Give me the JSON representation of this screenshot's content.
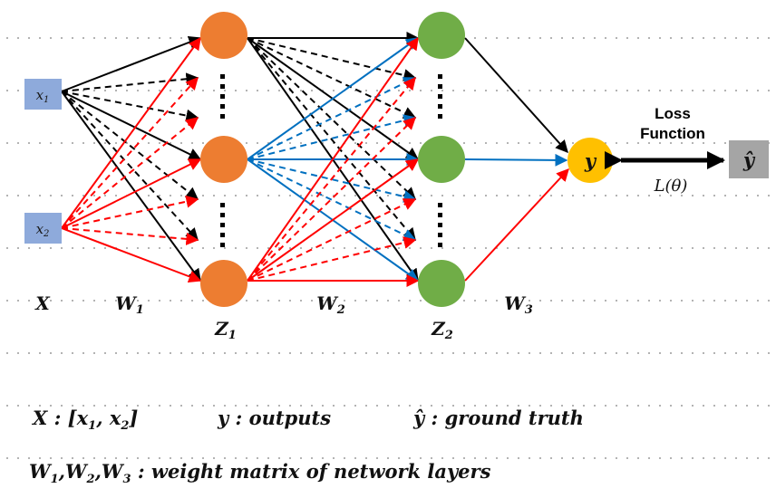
{
  "inputs": [
    {
      "base": "x",
      "sub": "1"
    },
    {
      "base": "x",
      "sub": "2"
    }
  ],
  "output_label": "y",
  "ground_truth_label": "ŷ",
  "loss": {
    "line1": "Loss",
    "line2": "Function",
    "formula": "L(θ)"
  },
  "labels": {
    "X": "X",
    "W1": {
      "base": "W",
      "sub": "1"
    },
    "Z1": {
      "base": "Z",
      "sub": "1"
    },
    "W2": {
      "base": "W",
      "sub": "2"
    },
    "Z2": {
      "base": "Z",
      "sub": "2"
    },
    "W3": {
      "base": "W",
      "sub": "3"
    }
  },
  "legend": {
    "line1": {
      "x_def": {
        "lhs": "X",
        "sep": " :  [",
        "a": "x",
        "a_sub": "1",
        "comma": ", ",
        "b": "x",
        "b_sub": "2",
        "end": "]"
      },
      "y_def": {
        "lhs": "y",
        "text": " :  outputs"
      },
      "yhat_def": {
        "lhs": "ŷ",
        "text": " :  ground truth"
      }
    },
    "line2": {
      "w1": "W",
      "w1_sub": "1",
      "w2": "W",
      "w2_sub": "2",
      "w3": "W",
      "w3_sub": "3",
      "comma": ",",
      "text": "  :  weight matrix of network layers"
    }
  },
  "colors": {
    "input_node": "#8eaadb",
    "hidden1_node": "#ed7d31",
    "hidden2_node": "#70ad47",
    "output_node": "#ffc000",
    "ground_truth_node": "#a5a5a5",
    "edge_black": "#000000",
    "edge_red": "#ff0000",
    "edge_blue": "#0070c0"
  }
}
